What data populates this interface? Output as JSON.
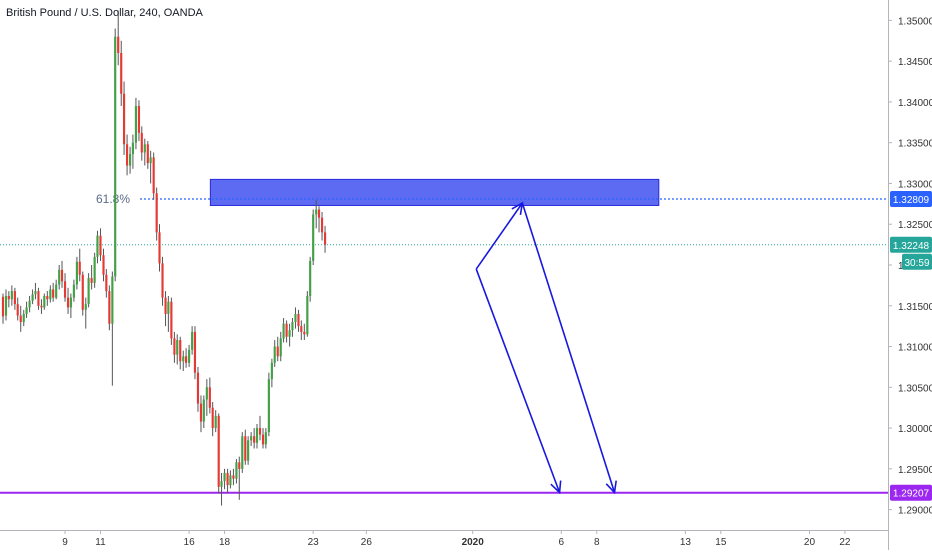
{
  "header": {
    "title": "British Pound / U.S. Dollar, 240, OANDA"
  },
  "colors": {
    "up": "#43a047",
    "down": "#e53935",
    "wick": "#555555",
    "fib_line": "#2962ff",
    "zone_fill": "#3f51ef",
    "zone_border": "#2a2ae0",
    "support": "#9c27f0",
    "projection_arrow": "#1818e0",
    "current_price": "#26a69a",
    "axis_text": "#333333",
    "grid_border": "#b2b5be"
  },
  "chart_data": {
    "type": "candlestick",
    "symbol": "British Pound / U.S. Dollar",
    "timeframe": "240",
    "broker": "OANDA",
    "ylim": [
      1.2875,
      1.3525
    ],
    "y_ticks": [
      "1.35000",
      "1.34500",
      "1.34000",
      "1.33500",
      "1.33000",
      "1.32500",
      "1.32000",
      "1.31500",
      "1.31000",
      "1.30500",
      "1.30000",
      "1.29500",
      "1.29000"
    ],
    "x_ticks": [
      {
        "label": "9",
        "day": 9
      },
      {
        "label": "11",
        "day": 11
      },
      {
        "label": "16",
        "day": 16
      },
      {
        "label": "18",
        "day": 18
      },
      {
        "label": "23",
        "day": 23
      },
      {
        "label": "26",
        "day": 26
      },
      {
        "label": "2020",
        "day": 32,
        "bold": true
      },
      {
        "label": "6",
        "day": 37
      },
      {
        "label": "8",
        "day": 39
      },
      {
        "label": "13",
        "day": 44
      },
      {
        "label": "15",
        "day": 46
      },
      {
        "label": "20",
        "day": 51
      },
      {
        "label": "22",
        "day": 53
      }
    ],
    "fib_level": {
      "label": "61.8%",
      "price": 1.32809,
      "price_label": "1.32809"
    },
    "current_price": {
      "price": 1.32248,
      "label": "1.32248",
      "countdown": "30:59"
    },
    "support": {
      "price": 1.29207,
      "label": "1.29207"
    },
    "resistance_zone": {
      "start_day": 17.2,
      "end_day": 42.5,
      "top": 1.3305,
      "bottom": 1.3273
    },
    "projection_arrows": [
      {
        "from": [
          32.2,
          1.3195
        ],
        "to": [
          34.8,
          1.3276
        ]
      },
      {
        "from": [
          34.8,
          1.3276
        ],
        "to": [
          40.0,
          1.2921
        ]
      },
      {
        "from": [
          32.2,
          1.3195
        ],
        "to": [
          36.9,
          1.2921
        ]
      }
    ],
    "candles": [
      [
        5.5,
        1.3161,
        1.3165,
        1.3128,
        1.3137
      ],
      [
        5.67,
        1.3138,
        1.317,
        1.3132,
        1.3162
      ],
      [
        5.83,
        1.3162,
        1.3168,
        1.3148,
        1.3158
      ],
      [
        6.0,
        1.3158,
        1.3175,
        1.315,
        1.3168
      ],
      [
        6.17,
        1.3168,
        1.3172,
        1.3145,
        1.3152
      ],
      [
        6.33,
        1.3152,
        1.316,
        1.3132,
        1.3138
      ],
      [
        6.5,
        1.3138,
        1.315,
        1.3118,
        1.313
      ],
      [
        6.67,
        1.313,
        1.3145,
        1.3125,
        1.314
      ],
      [
        6.83,
        1.314,
        1.3155,
        1.3135,
        1.3148
      ],
      [
        7.0,
        1.3148,
        1.3162,
        1.3142,
        1.3156
      ],
      [
        7.17,
        1.3156,
        1.317,
        1.3152,
        1.3164
      ],
      [
        7.33,
        1.3164,
        1.3178,
        1.3158,
        1.3168
      ],
      [
        7.5,
        1.3168,
        1.3172,
        1.3145,
        1.315
      ],
      [
        7.67,
        1.315,
        1.3158,
        1.314,
        1.3148
      ],
      [
        7.83,
        1.3148,
        1.3165,
        1.3145,
        1.3162
      ],
      [
        8.0,
        1.3162,
        1.3168,
        1.315,
        1.3158
      ],
      [
        8.17,
        1.3158,
        1.3175,
        1.3154,
        1.317
      ],
      [
        8.33,
        1.317,
        1.3178,
        1.3155,
        1.316
      ],
      [
        8.5,
        1.316,
        1.3182,
        1.3158,
        1.3176
      ],
      [
        8.67,
        1.3176,
        1.32,
        1.317,
        1.3194
      ],
      [
        8.83,
        1.3194,
        1.3205,
        1.3172,
        1.318
      ],
      [
        9.0,
        1.318,
        1.319,
        1.3155,
        1.316
      ],
      [
        9.17,
        1.316,
        1.3172,
        1.314,
        1.3148
      ],
      [
        9.33,
        1.3148,
        1.3165,
        1.3135,
        1.316
      ],
      [
        9.5,
        1.316,
        1.3182,
        1.3155,
        1.3176
      ],
      [
        9.67,
        1.3176,
        1.321,
        1.317,
        1.3204
      ],
      [
        9.83,
        1.3204,
        1.322,
        1.318,
        1.3188
      ],
      [
        10.0,
        1.3188,
        1.3192,
        1.3138,
        1.3145
      ],
      [
        10.17,
        1.3145,
        1.316,
        1.3122,
        1.3152
      ],
      [
        10.33,
        1.3152,
        1.319,
        1.3148,
        1.3184
      ],
      [
        10.5,
        1.3184,
        1.32,
        1.317,
        1.3178
      ],
      [
        10.67,
        1.3178,
        1.3215,
        1.3172,
        1.321
      ],
      [
        10.83,
        1.321,
        1.3242,
        1.3202,
        1.3236
      ],
      [
        11.0,
        1.3236,
        1.3245,
        1.3205,
        1.3212
      ],
      [
        11.17,
        1.3212,
        1.322,
        1.318,
        1.3188
      ],
      [
        11.33,
        1.3188,
        1.3195,
        1.316,
        1.3168
      ],
      [
        11.5,
        1.3168,
        1.3175,
        1.312,
        1.3128
      ],
      [
        11.67,
        1.3128,
        1.3192,
        1.3052,
        1.3186
      ],
      [
        11.83,
        1.3186,
        1.349,
        1.318,
        1.348
      ],
      [
        12.0,
        1.348,
        1.3512,
        1.3445,
        1.346
      ],
      [
        12.17,
        1.346,
        1.3475,
        1.3395,
        1.341
      ],
      [
        12.33,
        1.341,
        1.3425,
        1.3335,
        1.3348
      ],
      [
        12.5,
        1.3348,
        1.336,
        1.331,
        1.3322
      ],
      [
        12.67,
        1.3322,
        1.3345,
        1.3312,
        1.3336
      ],
      [
        12.83,
        1.3336,
        1.336,
        1.3318,
        1.335
      ],
      [
        13.0,
        1.335,
        1.3405,
        1.3342,
        1.3395
      ],
      [
        13.17,
        1.3395,
        1.3402,
        1.3352,
        1.3362
      ],
      [
        13.33,
        1.3362,
        1.337,
        1.3328,
        1.3338
      ],
      [
        13.5,
        1.3338,
        1.3355,
        1.3322,
        1.3348
      ],
      [
        13.67,
        1.3348,
        1.3352,
        1.3318,
        1.3325
      ],
      [
        13.83,
        1.3325,
        1.334,
        1.33,
        1.3332
      ],
      [
        14.0,
        1.3332,
        1.3338,
        1.328,
        1.3288
      ],
      [
        14.17,
        1.3288,
        1.3295,
        1.323,
        1.324
      ],
      [
        14.33,
        1.324,
        1.325,
        1.3192,
        1.3202
      ],
      [
        14.5,
        1.3202,
        1.321,
        1.315,
        1.316
      ],
      [
        14.67,
        1.316,
        1.3168,
        1.3125,
        1.314
      ],
      [
        14.83,
        1.314,
        1.3162,
        1.3118,
        1.3155
      ],
      [
        15.0,
        1.3155,
        1.316,
        1.3102,
        1.311
      ],
      [
        15.17,
        1.311,
        1.3118,
        1.308,
        1.309
      ],
      [
        15.33,
        1.309,
        1.3115,
        1.3078,
        1.3108
      ],
      [
        15.5,
        1.3108,
        1.3112,
        1.3072,
        1.3082
      ],
      [
        15.67,
        1.3082,
        1.3095,
        1.307,
        1.3088
      ],
      [
        15.83,
        1.3088,
        1.3098,
        1.3074,
        1.308
      ],
      [
        16.0,
        1.308,
        1.3102,
        1.3075,
        1.3096
      ],
      [
        16.17,
        1.3096,
        1.3125,
        1.309,
        1.3118
      ],
      [
        16.33,
        1.3118,
        1.3125,
        1.306,
        1.3068
      ],
      [
        16.5,
        1.3068,
        1.3075,
        1.302,
        1.303
      ],
      [
        16.67,
        1.303,
        1.304,
        1.2995,
        1.3008
      ],
      [
        16.83,
        1.3008,
        1.304,
        1.3,
        1.3035
      ],
      [
        17.0,
        1.3035,
        1.306,
        1.3015,
        1.305
      ],
      [
        17.17,
        1.305,
        1.3062,
        1.3018,
        1.3025
      ],
      [
        17.33,
        1.3025,
        1.3032,
        1.299,
        1.3
      ],
      [
        17.5,
        1.3,
        1.3022,
        1.2995,
        1.3015
      ],
      [
        17.67,
        1.3015,
        1.3018,
        1.292,
        1.2928
      ],
      [
        17.83,
        1.2928,
        1.2945,
        1.2905,
        1.2935
      ],
      [
        18.0,
        1.2935,
        1.295,
        1.2925,
        1.2945
      ],
      [
        18.17,
        1.2945,
        1.295,
        1.292,
        1.293
      ],
      [
        18.33,
        1.293,
        1.2948,
        1.2926,
        1.2942
      ],
      [
        18.5,
        1.2942,
        1.295,
        1.293,
        1.2938
      ],
      [
        18.67,
        1.2938,
        1.2962,
        1.2932,
        1.2958
      ],
      [
        18.83,
        1.2958,
        1.2965,
        1.2912,
        1.295
      ],
      [
        19.0,
        1.295,
        1.2995,
        1.2945,
        1.299
      ],
      [
        19.17,
        1.299,
        1.2998,
        1.2955,
        1.296
      ],
      [
        19.33,
        1.296,
        1.299,
        1.2955,
        1.2985
      ],
      [
        19.5,
        1.2985,
        1.2995,
        1.2978,
        1.299
      ],
      [
        19.67,
        1.299,
        1.3,
        1.2975,
        1.2982
      ],
      [
        19.83,
        1.2982,
        1.3005,
        1.2975,
        1.3
      ],
      [
        20.0,
        1.3,
        1.3015,
        1.2985,
        1.2992
      ],
      [
        20.17,
        1.2992,
        1.3,
        1.2975,
        1.298
      ],
      [
        20.33,
        1.298,
        1.3,
        1.2975,
        1.2995
      ],
      [
        20.5,
        1.2995,
        1.3068,
        1.299,
        1.306
      ],
      [
        20.67,
        1.306,
        1.3085,
        1.305,
        1.308
      ],
      [
        20.83,
        1.308,
        1.3108,
        1.3075,
        1.31
      ],
      [
        21.0,
        1.31,
        1.3112,
        1.3082,
        1.3088
      ],
      [
        21.17,
        1.3088,
        1.3118,
        1.3082,
        1.311
      ],
      [
        21.33,
        1.311,
        1.3135,
        1.3105,
        1.3128
      ],
      [
        21.5,
        1.3128,
        1.3132,
        1.3105,
        1.3112
      ],
      [
        21.67,
        1.3112,
        1.3128,
        1.31,
        1.312
      ],
      [
        21.83,
        1.312,
        1.3135,
        1.3112,
        1.313
      ],
      [
        22.0,
        1.313,
        1.3148,
        1.3122,
        1.314
      ],
      [
        22.17,
        1.314,
        1.3145,
        1.3118,
        1.3125
      ],
      [
        22.33,
        1.3125,
        1.3132,
        1.3108,
        1.3118
      ],
      [
        22.5,
        1.3118,
        1.3128,
        1.3108,
        1.3115
      ],
      [
        22.67,
        1.3115,
        1.3168,
        1.3112,
        1.3162
      ],
      [
        22.83,
        1.3162,
        1.321,
        1.3155,
        1.3205
      ],
      [
        23.0,
        1.3205,
        1.3268,
        1.32,
        1.3262
      ],
      [
        23.17,
        1.3262,
        1.328,
        1.3245,
        1.3268
      ],
      [
        23.33,
        1.3268,
        1.3272,
        1.324,
        1.3258
      ],
      [
        23.5,
        1.3258,
        1.3265,
        1.323,
        1.324
      ],
      [
        23.67,
        1.324,
        1.3248,
        1.3215,
        1.3225
      ]
    ]
  }
}
